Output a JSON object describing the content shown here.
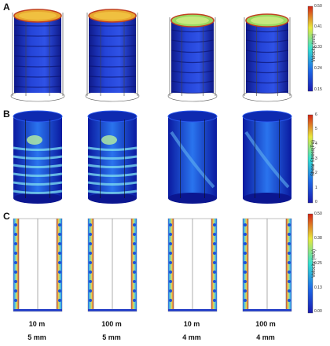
{
  "panels": {
    "A": {
      "label": "A",
      "colorbar": {
        "title": "Velocity (m/s)",
        "ticks": [
          "0.50",
          "0.41",
          "0.33",
          "0.24",
          "0.15"
        ]
      }
    },
    "B": {
      "label": "B",
      "colorbar": {
        "title": "Shear Stress(Pa)",
        "ticks": [
          "6",
          "5",
          "4",
          "3",
          "2",
          "1",
          "0"
        ]
      }
    },
    "C": {
      "label": "C",
      "colorbar": {
        "title": "Velocity (m/s)",
        "ticks": [
          "0.50",
          "0.38",
          "0.25",
          "0.13",
          "0.00"
        ]
      }
    }
  },
  "columns": [
    {
      "size": "10  m",
      "gap": "5 mm"
    },
    {
      "size": "100  m",
      "gap": "5 mm"
    },
    {
      "size": "10  m",
      "gap": "4 mm"
    },
    {
      "size": "100  m",
      "gap": "4 mm"
    }
  ],
  "colors": {
    "low": "#1c2fc8",
    "mid": "#2fd7e8",
    "high": "#e23a1c"
  }
}
